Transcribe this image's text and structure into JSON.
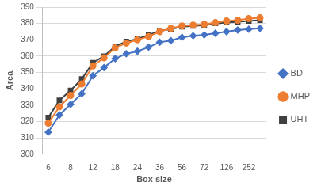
{
  "chart_data": {
    "type": "line",
    "x_label": "Box size",
    "y_label": "Area",
    "categories": [
      6,
      null,
      8,
      null,
      12,
      null,
      18,
      null,
      24,
      null,
      36,
      null,
      56,
      null,
      72,
      null,
      126,
      null,
      252,
      null
    ],
    "series": [
      {
        "name": "BD",
        "color": "#4472c4",
        "marker": "diamond",
        "line_style": "solid",
        "values": [
          313.5,
          324,
          330.5,
          337,
          348,
          353,
          358.5,
          361.5,
          363,
          365.5,
          368.5,
          369.5,
          371.5,
          372.5,
          373,
          374,
          375,
          376,
          376.5,
          377
        ]
      },
      {
        "name": "MHP",
        "color": "#ed7d31",
        "marker": "circle",
        "line_style": "solid",
        "values": [
          319,
          329,
          336,
          343,
          354,
          359,
          365,
          368,
          370,
          372,
          375,
          377,
          378.5,
          379,
          379.5,
          380.5,
          381.5,
          382,
          383,
          383.5
        ]
      },
      {
        "name": "UHT",
        "color": "#404040",
        "marker": "square",
        "line_style": "solid",
        "values": [
          322.5,
          333,
          339,
          346,
          356,
          360,
          366,
          369,
          370.5,
          373,
          375.5,
          376.5,
          378,
          378.5,
          379,
          380,
          380.5,
          381,
          381.5,
          382
        ]
      }
    ],
    "ylim": [
      300,
      390
    ],
    "yticks": [
      300,
      310,
      320,
      330,
      340,
      350,
      360,
      370,
      380,
      390
    ],
    "grid": true,
    "legend": "right"
  }
}
